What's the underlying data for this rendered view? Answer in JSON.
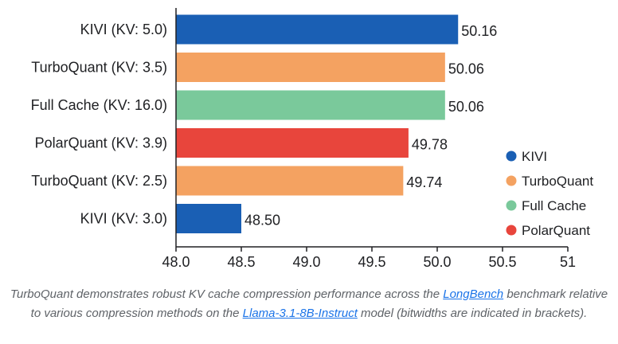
{
  "chart_data": {
    "type": "bar",
    "orientation": "horizontal",
    "title": "",
    "xlabel": "",
    "ylabel": "",
    "xlim": [
      48.0,
      51
    ],
    "x_ticks": [
      "48.0",
      "48.5",
      "49.0",
      "49.5",
      "50.0",
      "50.5",
      "51"
    ],
    "grid": false,
    "legend_position": "right",
    "categories": [
      "KIVI (KV: 5.0)",
      "TurboQuant (KV: 3.5)",
      "Full Cache (KV: 16.0)",
      "PolarQuant (KV: 3.9)",
      "TurboQuant (KV: 2.5)",
      "KIVI (KV: 3.0)"
    ],
    "values": [
      50.16,
      50.06,
      50.06,
      49.78,
      49.74,
      48.5
    ],
    "value_labels": [
      "50.16",
      "50.06",
      "50.06",
      "49.78",
      "49.74",
      "48.50"
    ],
    "bar_series": [
      "KIVI",
      "TurboQuant",
      "Full Cache",
      "PolarQuant",
      "TurboQuant",
      "KIVI"
    ],
    "legend": [
      {
        "name": "KIVI",
        "color": "#1a5fb4"
      },
      {
        "name": "TurboQuant",
        "color": "#f4a261"
      },
      {
        "name": "Full Cache",
        "color": "#7ac99b"
      },
      {
        "name": "PolarQuant",
        "color": "#e8453c"
      }
    ]
  },
  "caption": {
    "part1": "TurboQuant demonstrates robust KV cache compression performance across the ",
    "link1": "LongBench",
    "part2": " benchmark relative to various compression methods on the ",
    "link2": "Llama-3.1-8B-Instruct",
    "part3": " model (bitwidths are indicated in brackets)."
  }
}
